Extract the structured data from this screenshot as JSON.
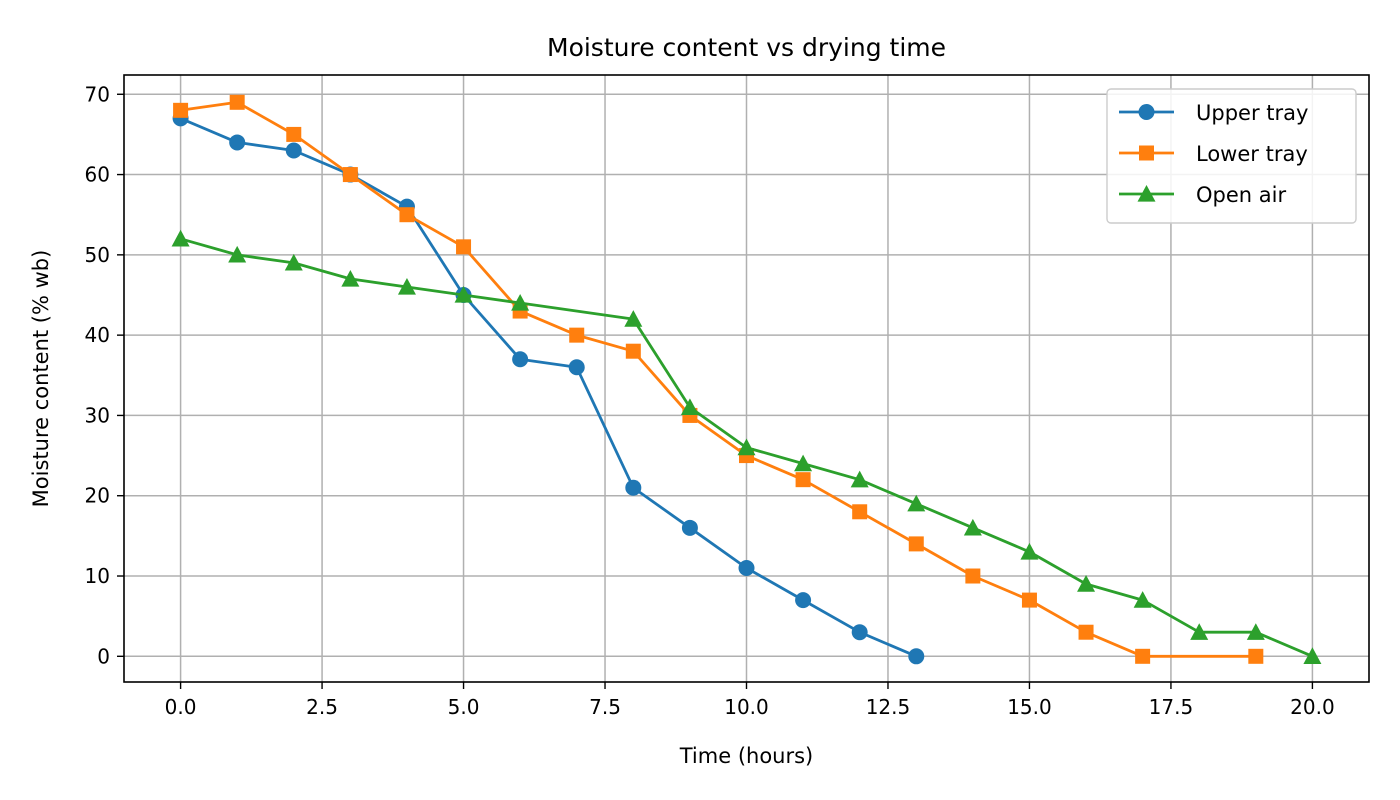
{
  "chart_data": {
    "type": "line",
    "title": "Moisture content vs drying time",
    "xlabel": "Time (hours)",
    "ylabel": "Moisture content (% wb)",
    "xlim": [
      -1,
      21
    ],
    "ylim": [
      -3.2,
      72.4
    ],
    "xticks": [
      0,
      2.5,
      5,
      7.5,
      10,
      12.5,
      15,
      17.5,
      20
    ],
    "xtick_labels": [
      "0.0",
      "2.5",
      "5.0",
      "7.5",
      "10.0",
      "12.5",
      "15.0",
      "17.5",
      "20.0"
    ],
    "yticks": [
      0,
      10,
      20,
      30,
      40,
      50,
      60,
      70
    ],
    "ytick_labels": [
      "0",
      "10",
      "20",
      "30",
      "40",
      "50",
      "60",
      "70"
    ],
    "grid": true,
    "legend_position": "top-right",
    "series": [
      {
        "name": "Upper tray",
        "color": "#1f77b4",
        "marker": "circle",
        "x": [
          0,
          1,
          2,
          3,
          4,
          5,
          6,
          7,
          8,
          9,
          10,
          11,
          12,
          13
        ],
        "y": [
          67,
          64,
          63,
          60,
          56,
          45,
          37,
          36,
          21,
          16,
          11,
          7,
          3,
          0
        ]
      },
      {
        "name": "Lower tray",
        "color": "#ff7f0e",
        "marker": "square",
        "x": [
          0,
          1,
          2,
          3,
          4,
          5,
          6,
          7,
          8,
          9,
          10,
          11,
          12,
          13,
          14,
          15,
          16,
          17,
          19
        ],
        "y": [
          68,
          69,
          65,
          60,
          55,
          51,
          43,
          40,
          38,
          30,
          25,
          22,
          18,
          14,
          10,
          7,
          3,
          0,
          0
        ]
      },
      {
        "name": "Open air",
        "color": "#2ca02c",
        "marker": "triangle",
        "x": [
          0,
          1,
          2,
          3,
          4,
          5,
          6,
          8,
          9,
          10,
          11,
          12,
          13,
          14,
          15,
          16,
          17,
          18,
          19,
          20
        ],
        "y": [
          52,
          50,
          49,
          47,
          46,
          45,
          44,
          42,
          31,
          26,
          24,
          22,
          19,
          16,
          13,
          9,
          7,
          3,
          3,
          0
        ]
      }
    ]
  }
}
